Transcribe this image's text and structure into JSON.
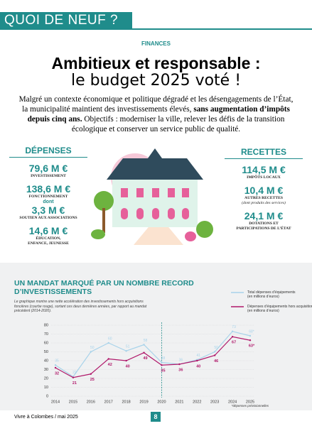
{
  "header": {
    "title": "QUOI DE NEUF ?"
  },
  "article": {
    "section": "FINANCES",
    "title_line1": "Ambitieux et responsable :",
    "title_line2": "le budget 2025 voté !",
    "intro": [
      "Malgré un contexte économique et politique dégradé et les désengagements de l’État, la municipalité maintient des investissements élevés, ",
      "sans augmentation d’impôts depuis cinq ans.",
      "Objectifs : moderniser la ville, relever les défis de la transition écologique et conserver un service public de qualité."
    ],
    "depenses": {
      "title": "DÉPENSES",
      "items": [
        {
          "amount": "79,6 M €",
          "label": "INVESTISSEMENT"
        },
        {
          "amount": "138,6 M €",
          "label": "FONCTIONNEMENT"
        }
      ],
      "dont": "dont",
      "sub_items": [
        {
          "amount": "3,3 M €",
          "label": "SOUTIEN AUX ASSOCIATIONS"
        },
        {
          "amount": "14,6 M €",
          "label": "ÉDUCATION, ENFANCE, JEUNESSE"
        }
      ]
    },
    "recettes": {
      "title": "RECETTES",
      "items": [
        {
          "amount": "114,5 M €",
          "label": "IMPÔTS LOCAUX"
        },
        {
          "amount": "10,4 M €",
          "label": "AUTRES RECETTES",
          "note": "(dont produits des services)"
        },
        {
          "amount": "24,1 M €",
          "label": "DOTATIONS ET PARTICIPATIONS DE L’ÉTAT"
        }
      ]
    }
  },
  "chart_data": {
    "type": "line",
    "title": "UN MANDAT MARQUÉ PAR UN NOMBRE RECORD D’INVESTISSEMENTS",
    "subtitle": "Le graphique montre une nette accélération des investissements hors acquisitions foncières (courbe rouge), sortant ces deux dernières années, par rapport au mandat précédent (2014-2020).",
    "categories": [
      "2014",
      "2015",
      "2016",
      "2017",
      "2018",
      "2019",
      "2020",
      "2021",
      "2022",
      "2023",
      "2024",
      "2025"
    ],
    "series": [
      {
        "name": "Total dépenses d’équipements (en millions d’euros)",
        "color": "#a8d3ea",
        "values": [
          35,
          22,
          50,
          60,
          51,
          58,
          38,
          36,
          41,
          50,
          73,
          68
        ],
        "value_labels": [
          "35",
          "22",
          "50",
          "60",
          "51",
          "58",
          "38",
          "36",
          "41",
          "50",
          "73",
          "68*"
        ]
      },
      {
        "name": "Dépenses d’équipements hors acquisitions foncières (en millions d’euros)",
        "color": "#b0186a",
        "values": [
          32,
          21,
          25,
          42,
          40,
          49,
          35,
          36,
          40,
          46,
          67,
          63
        ],
        "value_labels": [
          "32",
          "21",
          "25",
          "42",
          "40",
          "49",
          "35",
          "36",
          "40",
          "46",
          "67",
          "63*"
        ]
      }
    ],
    "ylim": [
      0,
      80
    ],
    "yticks": [
      0,
      10,
      20,
      30,
      40,
      50,
      60,
      70,
      80
    ],
    "grid": true,
    "note": "*dépenses prévisionnelles"
  },
  "footer": {
    "left": "Vivre à Colombes / mai 2025",
    "page": "8"
  }
}
